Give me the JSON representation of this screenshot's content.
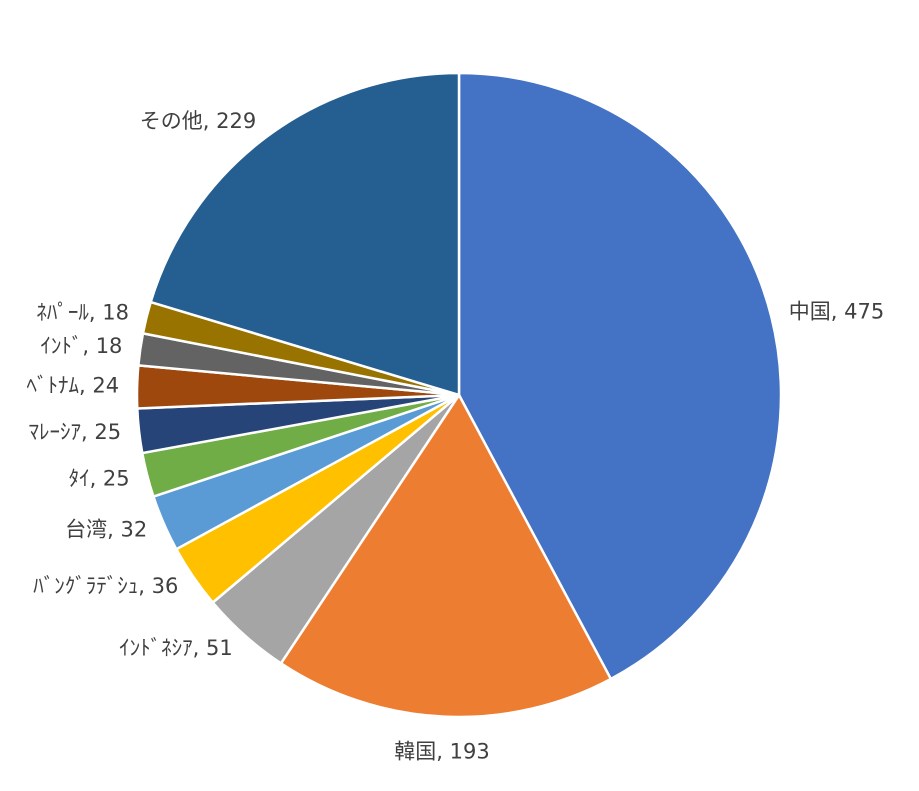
{
  "chart_data": {
    "type": "pie",
    "labels": [
      "中国, 475",
      "韓国, 193",
      "ｲﾝﾄﾞﾈｼｱ, 51",
      "ﾊﾞﾝｸﾞﾗﾃﾞｼｭ, 36",
      "台湾, 32",
      "ﾀｲ, 25",
      "ﾏﾚｰｼｱ, 25",
      "ﾍﾞﾄﾅﾑ, 24",
      "ｲﾝﾄﾞ, 18",
      "ﾈﾊﾟｰﾙ, 18",
      "その他, 229"
    ],
    "values": [
      475,
      193,
      51,
      36,
      32,
      25,
      25,
      24,
      18,
      18,
      229
    ],
    "colors": [
      "#4472c4",
      "#ed7d31",
      "#a5a5a5",
      "#ffc000",
      "#5b9bd5",
      "#70ad47",
      "#264478",
      "#9e480e",
      "#636363",
      "#997300",
      "#255e91"
    ]
  }
}
